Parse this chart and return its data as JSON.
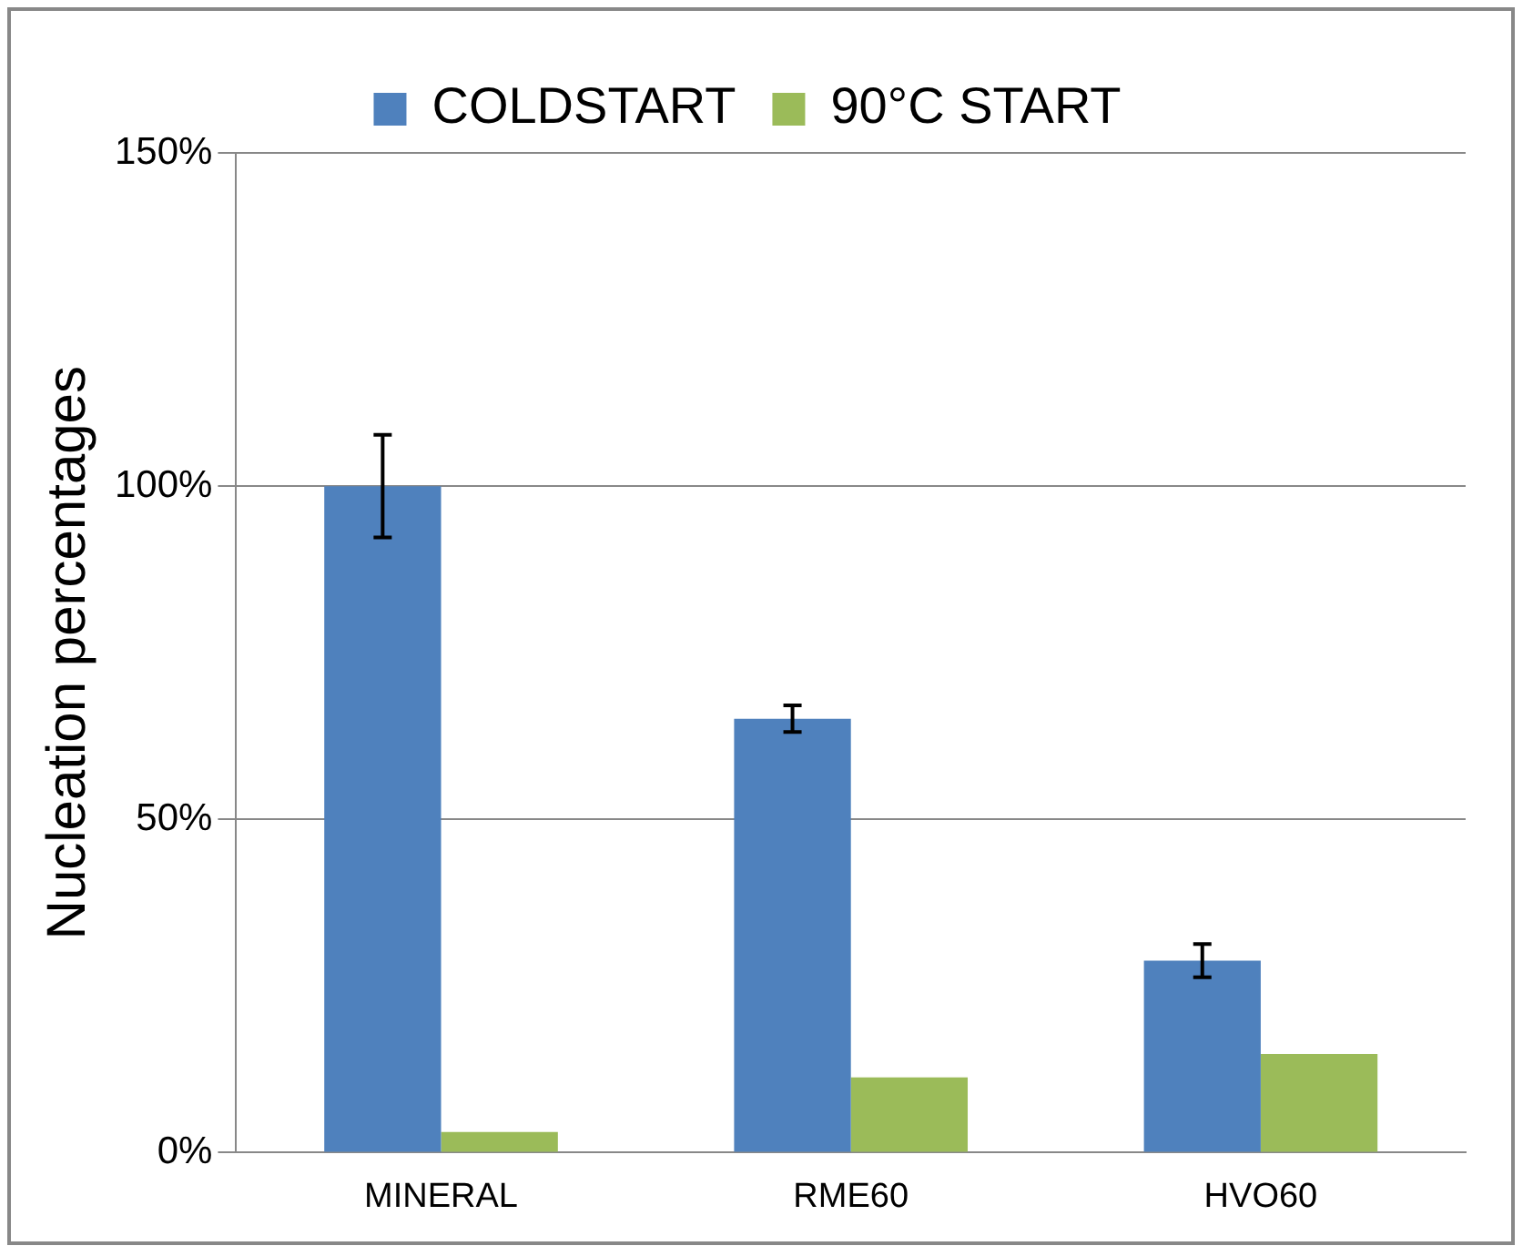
{
  "chart_data": {
    "type": "bar",
    "ylabel": "Nucleation percentages",
    "categories": [
      "MINERAL",
      "RME60",
      "HVO60"
    ],
    "series": [
      {
        "name": "COLDSTART",
        "color": "#4f81bd",
        "values": [
          100,
          65.1,
          28.8
        ],
        "errors": [
          7.7,
          2,
          2.5
        ]
      },
      {
        "name": "90°C START",
        "color": "#9bbb59",
        "values": [
          3.1,
          11.3,
          14.8
        ]
      }
    ],
    "ylim": [
      0,
      150
    ],
    "yticks": [
      {
        "value": 0,
        "label": "0%"
      },
      {
        "value": 50,
        "label": "50%"
      },
      {
        "value": 100,
        "label": "100%"
      },
      {
        "value": 150,
        "label": "150%"
      }
    ],
    "grid": "y",
    "legend": "top"
  }
}
